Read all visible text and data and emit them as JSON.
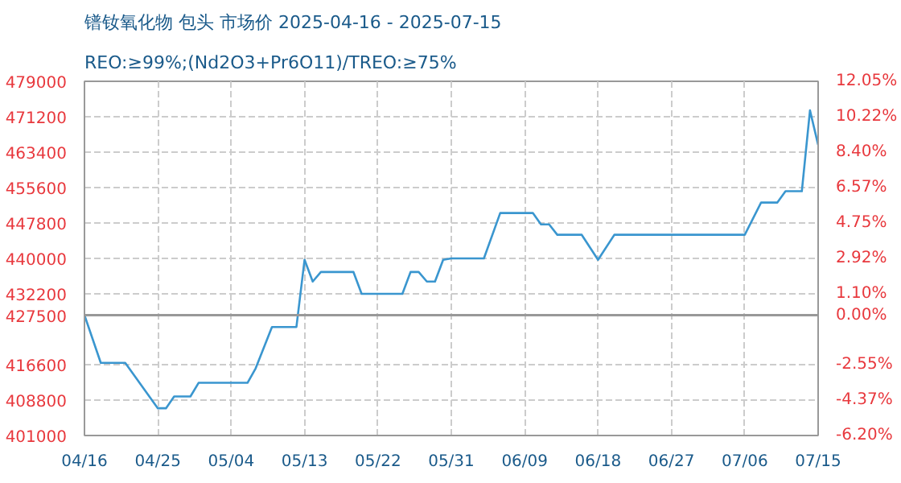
{
  "chart_data": {
    "type": "line",
    "title": "镨钕氧化物 包头 市场价 2025-04-16 - 2025-07-15",
    "subtitle": "REO:≥99%;(Nd2O3+Pr6O11)/TREO:≥75%",
    "x": [
      "2025-04-16",
      "2025-04-18",
      "2025-04-21",
      "2025-04-25",
      "2025-04-26",
      "2025-04-27",
      "2025-04-29",
      "2025-04-30",
      "2025-05-06",
      "2025-05-07",
      "2025-05-09",
      "2025-05-12",
      "2025-05-13",
      "2025-05-14",
      "2025-05-15",
      "2025-05-19",
      "2025-05-20",
      "2025-05-25",
      "2025-05-26",
      "2025-05-27",
      "2025-05-28",
      "2025-05-29",
      "2025-05-30",
      "2025-05-31",
      "2025-06-04",
      "2025-06-06",
      "2025-06-10",
      "2025-06-11",
      "2025-06-12",
      "2025-06-13",
      "2025-06-16",
      "2025-06-18",
      "2025-06-20",
      "2025-07-06",
      "2025-07-08",
      "2025-07-10",
      "2025-07-11",
      "2025-07-13",
      "2025-07-14",
      "2025-07-15"
    ],
    "series": [
      {
        "color": "#3a96cf",
        "values": [
          427500,
          417000,
          417000,
          407000,
          407000,
          409600,
          409600,
          412600,
          412600,
          415800,
          424900,
          424900,
          439700,
          434900,
          437000,
          437000,
          432200,
          432200,
          437000,
          437000,
          434900,
          434900,
          439700,
          440000,
          440000,
          450000,
          450000,
          447500,
          447500,
          445200,
          445200,
          439700,
          445200,
          445200,
          452300,
          452300,
          454800,
          454800,
          472600,
          465000
        ]
      }
    ],
    "xlim": [
      "2025-04-16",
      "2025-07-15"
    ],
    "xticks": [
      {
        "value": "2025-04-16",
        "label": "04/16"
      },
      {
        "value": "2025-04-25",
        "label": "04/25"
      },
      {
        "value": "2025-05-04",
        "label": "05/04"
      },
      {
        "value": "2025-05-13",
        "label": "05/13"
      },
      {
        "value": "2025-05-22",
        "label": "05/22"
      },
      {
        "value": "2025-05-31",
        "label": "05/31"
      },
      {
        "value": "2025-06-09",
        "label": "06/09"
      },
      {
        "value": "2025-06-18",
        "label": "06/18"
      },
      {
        "value": "2025-06-27",
        "label": "06/27"
      },
      {
        "value": "2025-07-06",
        "label": "07/06"
      },
      {
        "value": "2025-07-15",
        "label": "07/15"
      }
    ],
    "ylim": [
      401000,
      479000
    ],
    "yticks": [
      401000,
      408800,
      416600,
      427500,
      432200,
      440000,
      447800,
      455600,
      463400,
      471200,
      479000
    ],
    "y2lim": [
      -6.2,
      12.05
    ],
    "y2ticks": [
      {
        "value": -6.2,
        "label": "-6.20%"
      },
      {
        "value": -4.37,
        "label": "-4.37%"
      },
      {
        "value": -2.55,
        "label": "-2.55%"
      },
      {
        "value": 0,
        "label": "0.00%"
      },
      {
        "value": 1.1,
        "label": "1.10%"
      },
      {
        "value": 2.92,
        "label": "2.92%"
      },
      {
        "value": 4.75,
        "label": "4.75%"
      },
      {
        "value": 6.57,
        "label": "6.57%"
      },
      {
        "value": 8.4,
        "label": "8.40%"
      },
      {
        "value": 10.22,
        "label": "10.22%"
      },
      {
        "value": 12.05,
        "label": "12.05%"
      }
    ],
    "ref_lines": [
      {
        "axis": "y",
        "value": 427500,
        "color": "#999999"
      }
    ],
    "grid": true,
    "marker": "none",
    "line_style": "solid"
  }
}
